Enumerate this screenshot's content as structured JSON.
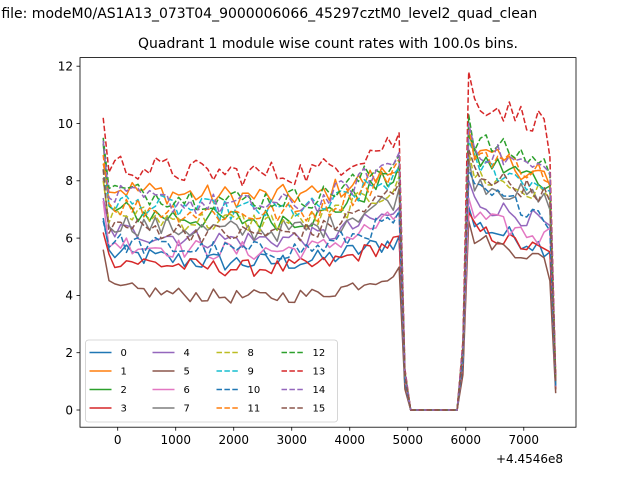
{
  "window": {
    "suptitle": "n file: modeM0/AS1A13_073T04_9000006066_45297cztM0_level2_quad_clean",
    "title": "Quadrant 1 module wise count rates with 100.0s bins.",
    "x_offset_label": "+4.4546e8"
  },
  "chart_data": {
    "type": "line",
    "title": "Quadrant 1 module wise count rates with 100.0s bins.",
    "xlabel": "",
    "ylabel": "",
    "x_offset": 445460000,
    "xlim": [
      -650,
      7900
    ],
    "ylim": [
      -0.6,
      12.3
    ],
    "xticks": [
      0,
      1000,
      2000,
      3000,
      4000,
      5000,
      6000,
      7000
    ],
    "yticks": [
      0,
      2,
      4,
      6,
      8,
      10,
      12
    ],
    "grid": false,
    "legend": {
      "placement": "lower-left",
      "columns": 4
    },
    "gap": {
      "drop_start": 4850,
      "zero_start": 5050,
      "zero_end": 5850,
      "rise_end": 6050,
      "last_x": 7550
    },
    "x_start": -250,
    "x_step": 100,
    "series": [
      {
        "name": "0",
        "color": "#1f77b4",
        "style": "solid",
        "level1": 5.5,
        "level2": 6.0,
        "first": 6.7,
        "peak2": 7.1,
        "amp": 0.35
      },
      {
        "name": "1",
        "color": "#ff7f0e",
        "style": "solid",
        "level1": 7.8,
        "level2": 8.5,
        "first": 8.6,
        "peak2": 9.8,
        "amp": 0.4
      },
      {
        "name": "2",
        "color": "#2ca02c",
        "style": "solid",
        "level1": 7.0,
        "level2": 8.5,
        "first": 9.3,
        "peak2": 9.6,
        "amp": 0.4
      },
      {
        "name": "3",
        "color": "#d62728",
        "style": "solid",
        "level1": 5.3,
        "level2": 6.0,
        "first": 6.2,
        "peak2": 6.9,
        "amp": 0.3
      },
      {
        "name": "4",
        "color": "#9467bd",
        "style": "solid",
        "level1": 6.3,
        "level2": 7.0,
        "first": 7.4,
        "peak2": 8.0,
        "amp": 0.35
      },
      {
        "name": "5",
        "color": "#8c564b",
        "style": "solid",
        "level1": 4.3,
        "level2": 4.9,
        "first": 5.6,
        "peak2": 6.6,
        "amp": 0.25
      },
      {
        "name": "6",
        "color": "#e377c2",
        "style": "solid",
        "level1": 5.9,
        "level2": 6.9,
        "first": 7.3,
        "peak2": 7.4,
        "amp": 0.35
      },
      {
        "name": "7",
        "color": "#7f7f7f",
        "style": "solid",
        "level1": 6.6,
        "level2": 7.6,
        "first": 8.1,
        "peak2": 8.8,
        "amp": 0.4
      },
      {
        "name": "8",
        "color": "#bcbd22",
        "style": "dashed",
        "level1": 6.9,
        "level2": 8.0,
        "first": 8.0,
        "peak2": 9.0,
        "amp": 0.4
      },
      {
        "name": "9",
        "color": "#17becf",
        "style": "dashed",
        "level1": 7.3,
        "level2": 8.3,
        "first": 8.4,
        "peak2": 9.4,
        "amp": 0.4
      },
      {
        "name": "10",
        "color": "#1f77b4",
        "style": "dashed",
        "level1": 5.9,
        "level2": 6.8,
        "first": 6.6,
        "peak2": 8.4,
        "amp": 0.35
      },
      {
        "name": "11",
        "color": "#ff7f0e",
        "style": "dashed",
        "level1": 7.2,
        "level2": 8.6,
        "first": 8.9,
        "peak2": 9.9,
        "amp": 0.4
      },
      {
        "name": "12",
        "color": "#2ca02c",
        "style": "dashed",
        "level1": 7.7,
        "level2": 8.9,
        "first": 9.5,
        "peak2": 10.3,
        "amp": 0.4
      },
      {
        "name": "13",
        "color": "#d62728",
        "style": "dashed",
        "level1": 8.6,
        "level2": 9.6,
        "first": 10.2,
        "peak2": 11.8,
        "amp": 0.45
      },
      {
        "name": "14",
        "color": "#9467bd",
        "style": "dashed",
        "level1": 7.5,
        "level2": 9.0,
        "first": 9.4,
        "peak2": 10.0,
        "amp": 0.4
      },
      {
        "name": "15",
        "color": "#8c564b",
        "style": "dashed",
        "level1": 6.5,
        "level2": 7.9,
        "first": 8.4,
        "peak2": 9.1,
        "amp": 0.35
      }
    ]
  }
}
